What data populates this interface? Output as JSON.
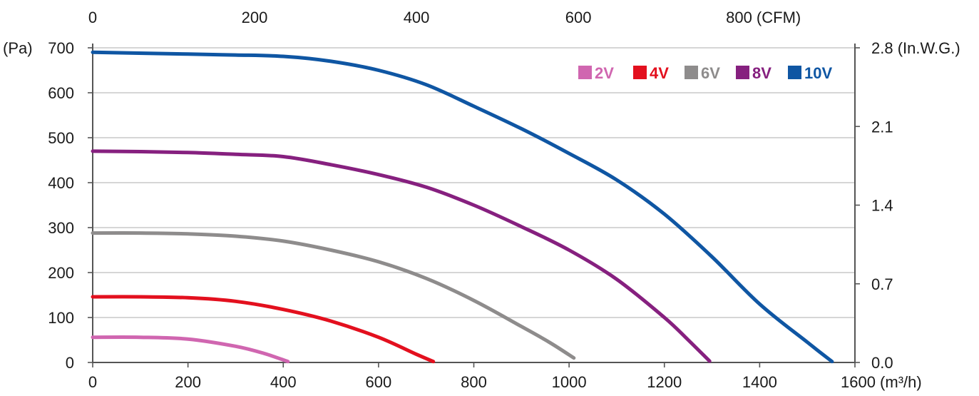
{
  "chart_data": {
    "type": "line",
    "x_unit": "(m³/h)",
    "x_top_unit": "(CFM)",
    "y_left_unit": "(Pa)",
    "y_right_unit": "(In.W.G.)",
    "xlim": [
      0,
      1600
    ],
    "ylim": [
      0,
      700
    ],
    "grid": true,
    "legend_position": "top-right",
    "x_ticks": [
      0,
      200,
      400,
      600,
      800,
      1000,
      1200,
      1400,
      1600
    ],
    "x_top_ticks": [
      0,
      200,
      400,
      600,
      800
    ],
    "y_left_ticks": [
      0,
      100,
      200,
      300,
      400,
      500,
      600,
      700
    ],
    "y_right_ticks": [
      "0.0",
      "0.7",
      "1.4",
      "2.1",
      "2.8"
    ],
    "y_right_ratio": 250,
    "cfm_factor": 1.699,
    "series": [
      {
        "name": "2V",
        "color": "#d066b0",
        "points": [
          [
            0,
            56
          ],
          [
            100,
            56
          ],
          [
            200,
            52
          ],
          [
            300,
            36
          ],
          [
            360,
            20
          ],
          [
            410,
            2
          ]
        ]
      },
      {
        "name": "4V",
        "color": "#e3101e",
        "points": [
          [
            0,
            146
          ],
          [
            100,
            146
          ],
          [
            200,
            144
          ],
          [
            300,
            136
          ],
          [
            400,
            118
          ],
          [
            500,
            92
          ],
          [
            600,
            56
          ],
          [
            680,
            18
          ],
          [
            715,
            2
          ]
        ]
      },
      {
        "name": "6V",
        "color": "#8e8c8c",
        "points": [
          [
            0,
            288
          ],
          [
            100,
            288
          ],
          [
            200,
            286
          ],
          [
            300,
            281
          ],
          [
            400,
            270
          ],
          [
            500,
            250
          ],
          [
            600,
            224
          ],
          [
            700,
            187
          ],
          [
            800,
            138
          ],
          [
            900,
            80
          ],
          [
            960,
            44
          ],
          [
            1010,
            10
          ]
        ]
      },
      {
        "name": "8V",
        "color": "#86207f",
        "points": [
          [
            0,
            470
          ],
          [
            100,
            469
          ],
          [
            200,
            467
          ],
          [
            300,
            463
          ],
          [
            400,
            458
          ],
          [
            500,
            440
          ],
          [
            600,
            418
          ],
          [
            700,
            390
          ],
          [
            800,
            350
          ],
          [
            900,
            302
          ],
          [
            1000,
            250
          ],
          [
            1100,
            185
          ],
          [
            1200,
            100
          ],
          [
            1250,
            50
          ],
          [
            1295,
            3
          ]
        ]
      },
      {
        "name": "10V",
        "color": "#0f56a3",
        "points": [
          [
            0,
            690
          ],
          [
            200,
            686
          ],
          [
            300,
            684
          ],
          [
            400,
            681
          ],
          [
            500,
            670
          ],
          [
            600,
            650
          ],
          [
            700,
            618
          ],
          [
            800,
            570
          ],
          [
            900,
            520
          ],
          [
            1000,
            465
          ],
          [
            1100,
            406
          ],
          [
            1200,
            330
          ],
          [
            1300,
            235
          ],
          [
            1400,
            130
          ],
          [
            1500,
            45
          ],
          [
            1552,
            2
          ]
        ]
      }
    ]
  }
}
